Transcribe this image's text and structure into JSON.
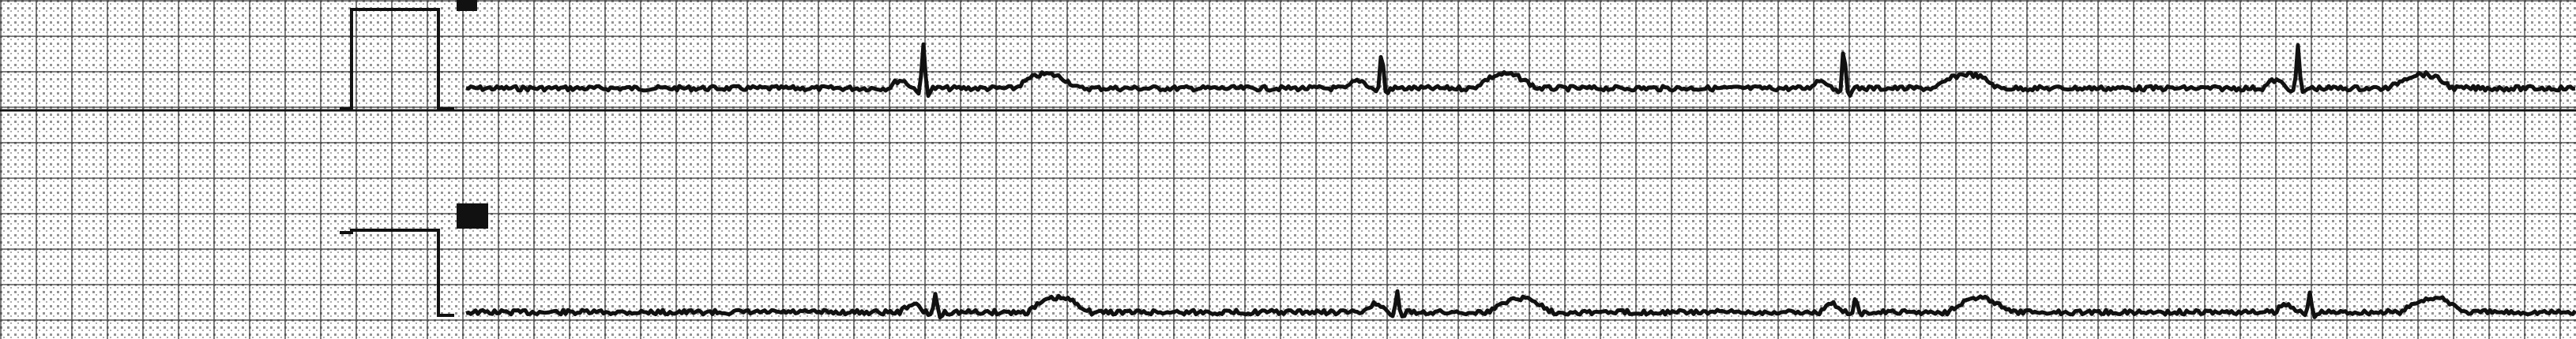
{
  "image": {
    "kind": "ecg-paper-strip",
    "paper_color": "#ffffff",
    "grid_color": "#3a3a3a",
    "trace_color": "#111111",
    "leads": [
      {
        "calibration_pulse": true,
        "marker": "square"
      },
      {
        "calibration_pulse": true,
        "marker": "square"
      }
    ]
  }
}
